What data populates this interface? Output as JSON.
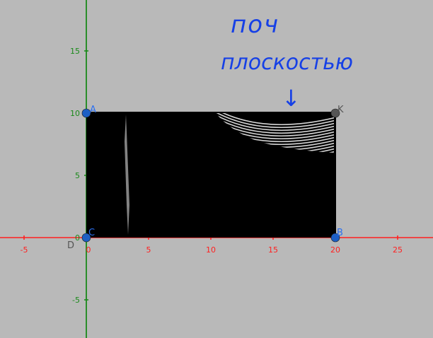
{
  "app": {
    "background": "#b9b9b9",
    "x_axis_color": "#ff2020",
    "y_axis_color": "#1a8a1a",
    "point_color": "#1d5fc4",
    "point_label_color": "#2a6ff0",
    "point_k_color": "#555555",
    "handwriting_color": "#1640e6"
  },
  "graph": {
    "x_ticks": [
      -5,
      0,
      5,
      10,
      15,
      20,
      25
    ],
    "x_tick_labels": [
      "-5",
      "0",
      "5",
      "10",
      "15",
      "20",
      "25"
    ],
    "y_ticks": [
      15,
      10,
      5,
      0,
      -5
    ],
    "y_tick_labels": [
      "15",
      "10",
      "5",
      "0",
      "-5"
    ],
    "points": [
      {
        "id": "A",
        "label": "A",
        "x": 0,
        "y": 10
      },
      {
        "id": "K",
        "label": "K",
        "x": 20,
        "y": 10
      },
      {
        "id": "B",
        "label": "B",
        "x": 20,
        "y": 0
      },
      {
        "id": "C",
        "label": "C",
        "x": 0,
        "y": 0
      },
      {
        "id": "D",
        "label": "D",
        "x": 0,
        "y": 0
      }
    ],
    "rectangle": {
      "x_min": 0,
      "x_max": 20,
      "y_min": 0,
      "y_max": 10,
      "fill": "#000000"
    }
  },
  "annotation": {
    "line1": "поч",
    "line2": "плоскостью",
    "arrow": "↓"
  }
}
